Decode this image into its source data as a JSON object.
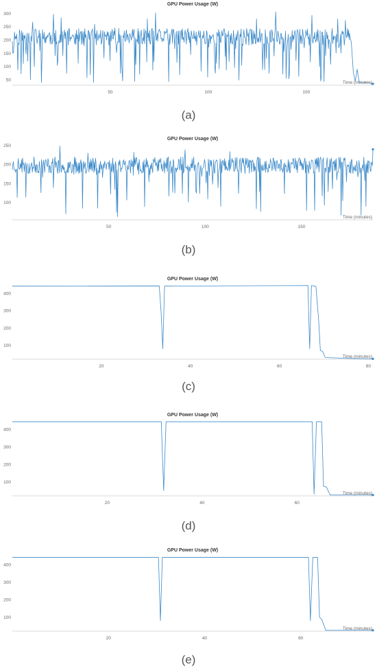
{
  "captions": [
    "(a)",
    "(b)",
    "(c)",
    "(d)",
    "(e)"
  ],
  "series_color": "#3a88c8",
  "chart_data": [
    {
      "type": "line",
      "title": "GPU Power Usage (W)",
      "xlabel": "Time (minutes)",
      "ylabel": "",
      "xlim": [
        0,
        184
      ],
      "ylim": [
        30,
        320
      ],
      "xticks": [
        50,
        100,
        150
      ],
      "yticks": [
        50,
        100,
        150,
        200,
        250,
        300
      ],
      "grid": false,
      "legend": "none",
      "profile": "noisy",
      "seed": 11,
      "noise": {
        "base": 212,
        "amp": 32,
        "spike_up": 312,
        "dip_low": 40,
        "dip_prob": 0.17
      },
      "end_segment": [
        [
          172,
          225
        ],
        [
          173,
          190
        ],
        [
          174,
          80
        ],
        [
          175,
          45
        ],
        [
          176,
          90
        ],
        [
          177,
          40
        ],
        [
          178,
          40
        ],
        [
          182,
          40
        ],
        [
          184,
          35
        ]
      ]
    },
    {
      "type": "line",
      "title": "GPU Power Usage (W)",
      "xlabel": "Time (minutes)",
      "ylabel": "",
      "xlim": [
        0,
        187
      ],
      "ylim": [
        55,
        255
      ],
      "xticks": [
        50,
        100,
        150
      ],
      "yticks": [
        100,
        150,
        200,
        250
      ],
      "grid": false,
      "legend": "none",
      "profile": "noisy",
      "seed": 23,
      "noise": {
        "base": 198,
        "amp": 22,
        "spike_up": 252,
        "dip_low": 62,
        "dip_prob": 0.07
      },
      "end_segment": [
        [
          187,
          240
        ]
      ]
    },
    {
      "type": "line",
      "title": "GPU Power Usage (W)",
      "xlabel": "Time (minutes)",
      "ylabel": "",
      "xlim": [
        0,
        81
      ],
      "ylim": [
        20,
        460
      ],
      "xticks": [
        20,
        40,
        60,
        80
      ],
      "yticks": [
        100,
        200,
        300,
        400
      ],
      "grid": false,
      "legend": "none",
      "profile": "steady",
      "points": [
        [
          0,
          442
        ],
        [
          33,
          443
        ],
        [
          33.4,
          300
        ],
        [
          33.8,
          80
        ],
        [
          34.2,
          442
        ],
        [
          66.4,
          445
        ],
        [
          66.8,
          80
        ],
        [
          67.2,
          445
        ],
        [
          68.2,
          440
        ],
        [
          68.8,
          250
        ],
        [
          69.2,
          70
        ],
        [
          69.7,
          65
        ],
        [
          70.3,
          30
        ],
        [
          75,
          25
        ],
        [
          81,
          22
        ]
      ]
    },
    {
      "type": "line",
      "title": "GPU Power Usage (W)",
      "xlabel": "Time (minutes)",
      "ylabel": "",
      "xlim": [
        0,
        76
      ],
      "ylim": [
        20,
        460
      ],
      "xticks": [
        20,
        40,
        60
      ],
      "yticks": [
        100,
        200,
        300,
        400
      ],
      "grid": false,
      "legend": "none",
      "profile": "steady",
      "points": [
        [
          0,
          444
        ],
        [
          31.4,
          444
        ],
        [
          31.9,
          50
        ],
        [
          32.4,
          444
        ],
        [
          63.2,
          444
        ],
        [
          63.6,
          30
        ],
        [
          64.1,
          444
        ],
        [
          65.2,
          444
        ],
        [
          65.6,
          75
        ],
        [
          66.2,
          70
        ],
        [
          67.0,
          25
        ],
        [
          76,
          25
        ]
      ]
    },
    {
      "type": "line",
      "title": "GPU Power Usage (W)",
      "xlabel": "Time (minutes)",
      "ylabel": "",
      "xlim": [
        0,
        75
      ],
      "ylim": [
        20,
        460
      ],
      "xticks": [
        20,
        40,
        60
      ],
      "yticks": [
        100,
        200,
        300,
        400
      ],
      "grid": false,
      "legend": "none",
      "profile": "steady",
      "points": [
        [
          0,
          442
        ],
        [
          30.4,
          442
        ],
        [
          30.8,
          80
        ],
        [
          31.2,
          442
        ],
        [
          61.6,
          442
        ],
        [
          62.0,
          80
        ],
        [
          62.5,
          442
        ],
        [
          63.5,
          442
        ],
        [
          63.9,
          100
        ],
        [
          64.4,
          85
        ],
        [
          65.2,
          25
        ],
        [
          75,
          25
        ]
      ]
    }
  ]
}
